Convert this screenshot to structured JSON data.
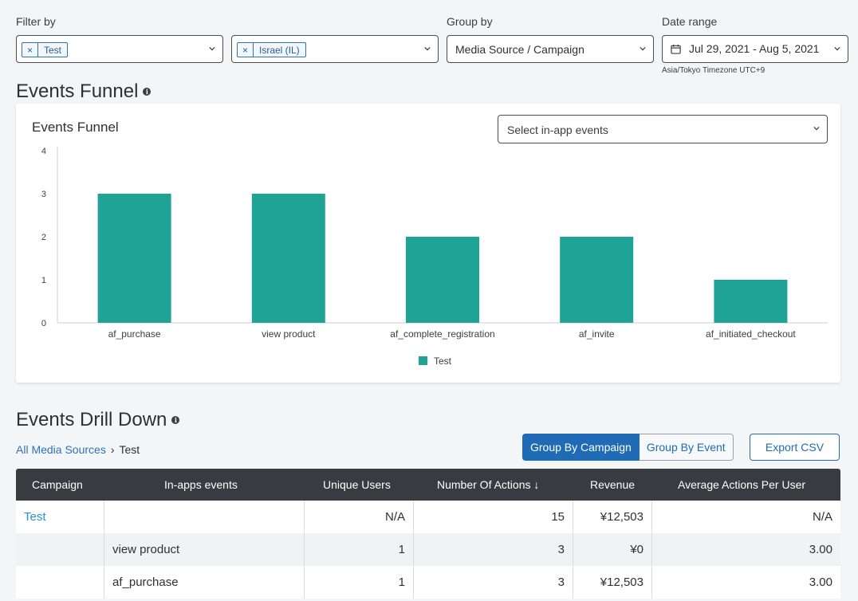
{
  "filters": {
    "filter_label": "Filter by",
    "chip1": "Test",
    "chip2": "Israel (IL)",
    "chip_remove": "×",
    "group_label": "Group by",
    "group_value": "Media Source / Campaign",
    "date_label": "Date range",
    "date_value": "Jul 29, 2021 - Aug 5, 2021",
    "timezone": "Asia/Tokyo Timezone UTC+9"
  },
  "funnel": {
    "section_title": "Events Funnel",
    "chart_title": "Events Funnel",
    "events_select_placeholder": "Select in-app events"
  },
  "chart_data": {
    "type": "bar",
    "title": "Events Funnel",
    "categories": [
      "af_purchase",
      "view product",
      "af_complete_registration",
      "af_invite",
      "af_initiated_checkout"
    ],
    "series": [
      {
        "name": "Test",
        "values": [
          3,
          3,
          2,
          2,
          1
        ],
        "color": "#1fa396"
      }
    ],
    "ylim": [
      0,
      4
    ],
    "yticks": [
      0,
      1,
      2,
      3,
      4
    ],
    "legend": "bottom-center",
    "grid": false
  },
  "drill": {
    "section_title": "Events Drill Down",
    "crumb_root": "All Media Sources",
    "crumb_sep": "›",
    "crumb_current": "Test",
    "btn_group_campaign": "Group By Campaign",
    "btn_group_event": "Group By Event",
    "btn_export": "Export CSV"
  },
  "table": {
    "columns": [
      "Campaign",
      "In-apps events",
      "Unique Users",
      "Number Of Actions ↓",
      "Revenue",
      "Average Actions Per User"
    ],
    "rows": [
      [
        "Test",
        "",
        "N/A",
        "15",
        "¥12,503",
        "N/A"
      ],
      [
        "",
        "view product",
        "1",
        "3",
        "¥0",
        "3.00"
      ],
      [
        "",
        "af_purchase",
        "1",
        "3",
        "¥12,503",
        "3.00"
      ]
    ]
  },
  "colors": {
    "accent": "#1f6bb5",
    "bar": "#1fa396",
    "table_header": "#383b40",
    "link": "#2a73b8"
  }
}
